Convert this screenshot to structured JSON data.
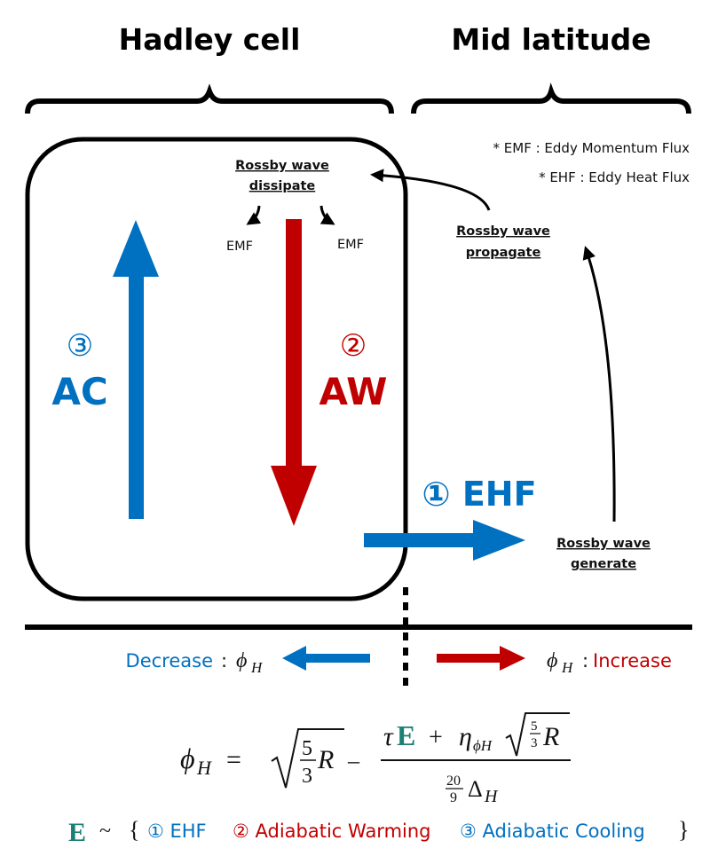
{
  "colors": {
    "blue": "#0070c0",
    "red": "#c00000",
    "E_teal": "#1a7f74",
    "black": "#000000"
  },
  "headers": {
    "left": "Hadley cell",
    "right": "Mid latitude"
  },
  "legend": {
    "emf": "* EMF : Eddy Momentum Flux",
    "ehf": "* EHF : Eddy Heat Flux"
  },
  "labels": {
    "dissipate_1": "Rossby wave",
    "dissipate_2": "dissipate",
    "emf_left": "EMF",
    "emf_right": "EMF",
    "propagate_1": "Rossby wave",
    "propagate_2": "propagate",
    "generate_1": "Rossby wave",
    "generate_2": "generate",
    "ac_num": "③",
    "ac": "AC",
    "aw_num": "②",
    "aw": "AW",
    "ehf": "① EHF"
  },
  "bottom": {
    "decrease": "Decrease",
    "increase": "Increase",
    "colon": ":",
    "phi": "ϕ",
    "sub_H": "H"
  },
  "formula": {
    "lhs": "ϕ",
    "lhs_sub": "H",
    "eq": "=",
    "five": "5",
    "three": "3",
    "R": "R",
    "minus": "–",
    "tau": "τ",
    "E": "E",
    "plus": "+",
    "eta": "η",
    "eta_sub": "ϕH",
    "twenty": "20",
    "nine": "9",
    "delta": "Δ",
    "delta_sub": "H"
  },
  "E_relation": {
    "E": "E",
    "tilde": "~",
    "open": "{",
    "item1": "① EHF",
    "item2": "② Adiabatic Warming",
    "item3": "③ Adiabatic Cooling",
    "close": "}"
  }
}
